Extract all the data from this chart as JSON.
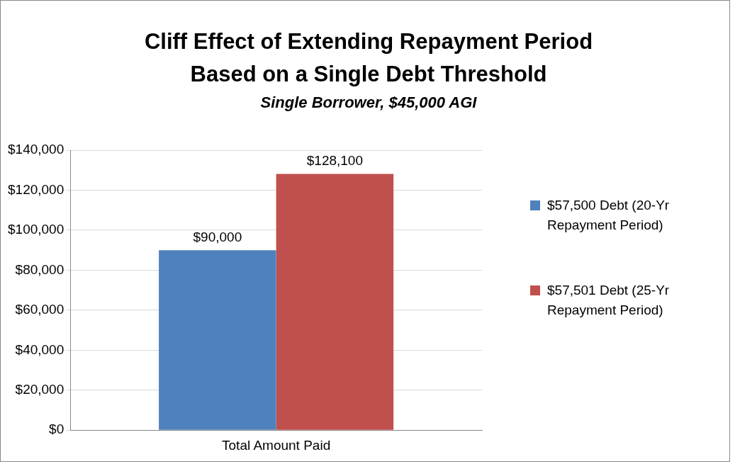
{
  "chart_data": {
    "type": "bar",
    "title": "Cliff Effect of Extending Repayment Period\nBased on a Single Debt Threshold",
    "subtitle": "Single Borrower, $45,000 AGI",
    "categories": [
      "Total Amount Paid"
    ],
    "series": [
      {
        "name": "$57,500 Debt (20-Yr Repayment Period)",
        "color": "#4f81bd",
        "values": [
          90000
        ],
        "value_labels": [
          "$90,000"
        ]
      },
      {
        "name": "$57,501 Debt (25-Yr Repayment Period)",
        "color": "#c0504d",
        "values": [
          128100
        ],
        "value_labels": [
          "$128,100"
        ]
      }
    ],
    "ylim": [
      0,
      140000
    ],
    "yticks": [
      {
        "value": 0,
        "label": "$0"
      },
      {
        "value": 20000,
        "label": "$20,000"
      },
      {
        "value": 40000,
        "label": "$40,000"
      },
      {
        "value": 60000,
        "label": "$60,000"
      },
      {
        "value": 80000,
        "label": "$80,000"
      },
      {
        "value": 100000,
        "label": "$100,000"
      },
      {
        "value": 120000,
        "label": "$120,000"
      },
      {
        "value": 140000,
        "label": "$140,000"
      }
    ],
    "grid": "y",
    "legend": "right"
  }
}
